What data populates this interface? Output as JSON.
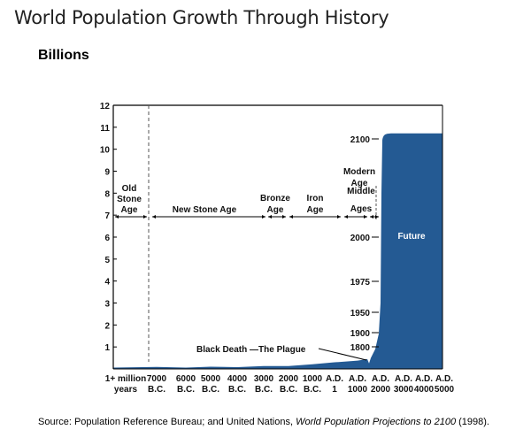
{
  "title": "World Population Growth Through History",
  "subtitle": "Billions",
  "source": {
    "prefix": "Source: Population Reference Bureau; and United Nations, ",
    "italic": "World Population Projections to 2100",
    "suffix": " (1998)."
  },
  "chart_data": {
    "type": "area",
    "ylabel": "Billions",
    "ylim": [
      0,
      12
    ],
    "yticks": [
      1,
      2,
      3,
      4,
      5,
      6,
      7,
      8,
      9,
      10,
      11,
      12
    ],
    "categories": [
      [
        "1+ million",
        "years"
      ],
      [
        "7000",
        "B.C."
      ],
      [
        "6000",
        "B.C."
      ],
      [
        "5000",
        "B.C."
      ],
      [
        "4000",
        "B.C."
      ],
      [
        "3000",
        "B.C."
      ],
      [
        "2000",
        "B.C."
      ],
      [
        "1000",
        "B.C."
      ],
      [
        "A.D.",
        "1"
      ],
      [
        "A.D.",
        "1000"
      ],
      [
        "A.D.",
        "2000"
      ],
      [
        "A.D.",
        "3000"
      ],
      [
        "A.D.",
        "4000"
      ],
      [
        "A.D.",
        "5000"
      ]
    ],
    "values": [
      0.01,
      0.01,
      0.01,
      0.02,
      0.03,
      0.05,
      0.08,
      0.13,
      0.25,
      0.3,
      6.1,
      10.7,
      10.7,
      10.7
    ],
    "color": "#245a93",
    "year_markers": [
      {
        "label": "1800",
        "value": 1.0
      },
      {
        "label": "1900",
        "value": 1.6
      },
      {
        "label": "1950",
        "value": 2.5
      },
      {
        "label": "1975",
        "value": 4.0
      },
      {
        "label": "2000",
        "value": 6.1
      },
      {
        "label": "2100",
        "value": 10.7
      }
    ],
    "eras": [
      "Old Stone Age",
      "New Stone Age",
      "Bronze Age",
      "Iron Age",
      "Middle Ages",
      "Modern Age"
    ],
    "annotations": {
      "plague": "Black Death —The Plague",
      "future": "Future"
    }
  }
}
